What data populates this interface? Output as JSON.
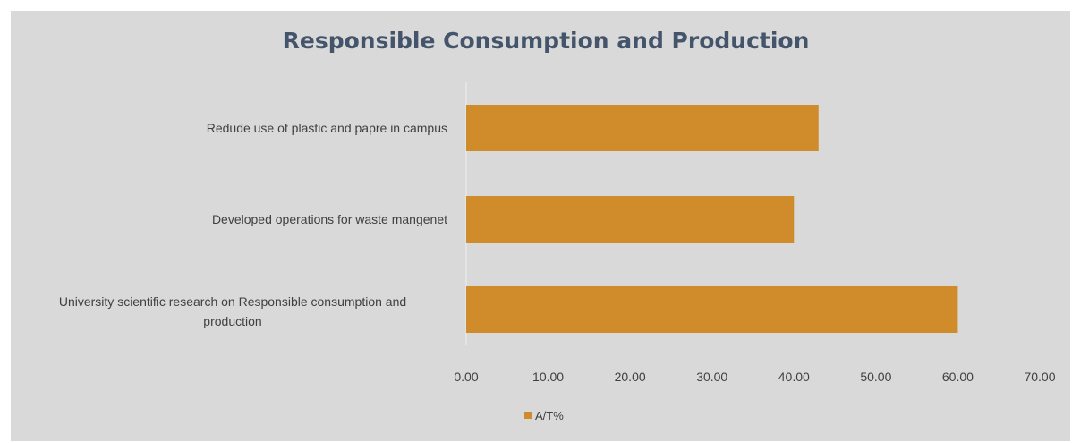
{
  "chart_data": {
    "type": "bar",
    "orientation": "horizontal",
    "title": "Responsible Consumption and Production",
    "categories": [
      "Redude use of plastic and papre in campus",
      "Developed operations for waste mangenet",
      "University scientific research on Responsible consumption and production"
    ],
    "series": [
      {
        "name": "A/T%",
        "values": [
          43,
          40,
          60
        ],
        "color": "#d08b2b"
      }
    ],
    "xlim": [
      0,
      70
    ],
    "xticks": [
      "0.00",
      "10.00",
      "20.00",
      "30.00",
      "40.00",
      "50.00",
      "60.00",
      "70.00"
    ],
    "grid": false,
    "legend_position": "bottom",
    "plot_background": "#d9d9d9"
  }
}
